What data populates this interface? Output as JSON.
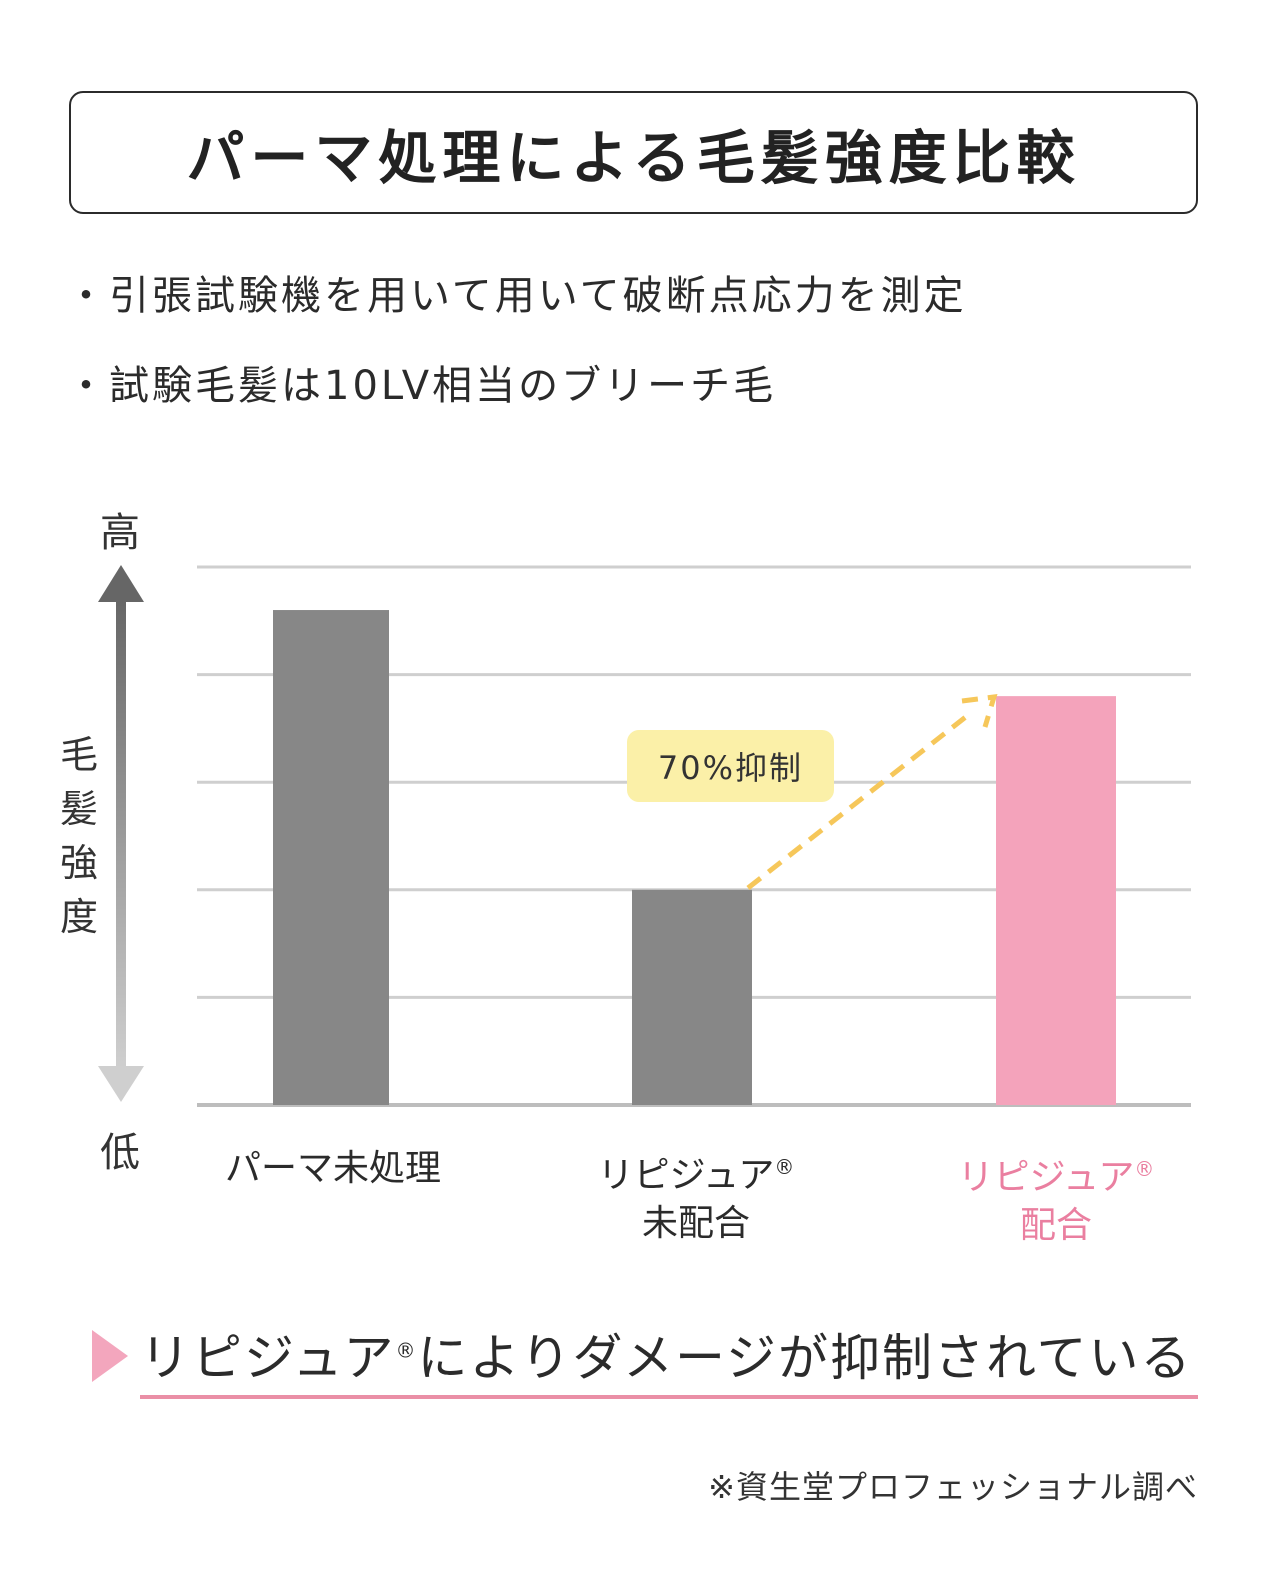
{
  "title": "パーマ処理による毛髪強度比較",
  "bullets": [
    "・引張試験機を用いて用いて破断点応力を測定",
    "・試験毛髪は10LV相当のブリーチ毛"
  ],
  "chart_data": {
    "type": "bar",
    "title": "パーマ処理による毛髪強度比較",
    "ylabel": "毛髪強度",
    "y_high_label": "高",
    "y_low_label": "低",
    "ylim": [
      0,
      5
    ],
    "grid": true,
    "categories": [
      {
        "line1": "パーマ未処理",
        "line2": "",
        "reg": "",
        "highlight": false
      },
      {
        "line1": "リピジュア",
        "line2": "未配合",
        "reg": "®",
        "highlight": false
      },
      {
        "line1": "リピジュア",
        "line2": "配合",
        "reg": "®",
        "highlight": true
      }
    ],
    "values": [
      4.6,
      2.0,
      3.8
    ],
    "colors": [
      "#878787",
      "#878787",
      "#f4a3bb"
    ],
    "annotation": "70%抑制"
  },
  "conclusion": {
    "before": "リピジュア",
    "reg": "®",
    "after": "によりダメージが抑制されている"
  },
  "source": "※資生堂プロフェッショナル調べ"
}
